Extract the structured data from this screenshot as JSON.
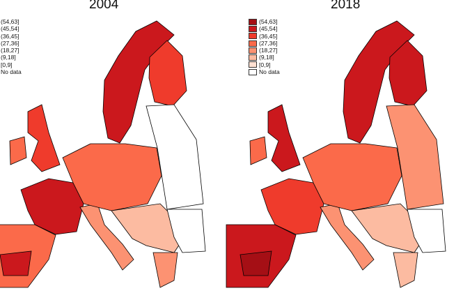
{
  "maps": [
    {
      "title": "2004",
      "classes": {
        "scandinavia": 1,
        "finland": 2,
        "uk": 2,
        "ireland": 3,
        "france": 1,
        "iberia": 3,
        "iberia_south": 1,
        "italy": 4,
        "central": 3,
        "east": 7,
        "balkans": 5,
        "romania": 7,
        "greece": 4
      }
    },
    {
      "title": "2018",
      "classes": {
        "scandinavia": 1,
        "finland": 1,
        "uk": 1,
        "ireland": 3,
        "france": 2,
        "iberia": 1,
        "iberia_south": 0,
        "italy": 4,
        "central": 3,
        "east": 4,
        "balkans": 5,
        "romania": 7,
        "greece": 5
      }
    }
  ],
  "legend": [
    {
      "label": "(54,63]",
      "color": "#a50f15"
    },
    {
      "label": "(45,54]",
      "color": "#cb181d"
    },
    {
      "label": "(36,45]",
      "color": "#ef3b2c"
    },
    {
      "label": "(27,36]",
      "color": "#fb6a4a"
    },
    {
      "label": "(18,27]",
      "color": "#fc9272"
    },
    {
      "label": "(9,18]",
      "color": "#fcbba1"
    },
    {
      "label": "[0,9]",
      "color": "#fee0d2"
    },
    {
      "label": "No data",
      "color": "#ffffff"
    }
  ]
}
